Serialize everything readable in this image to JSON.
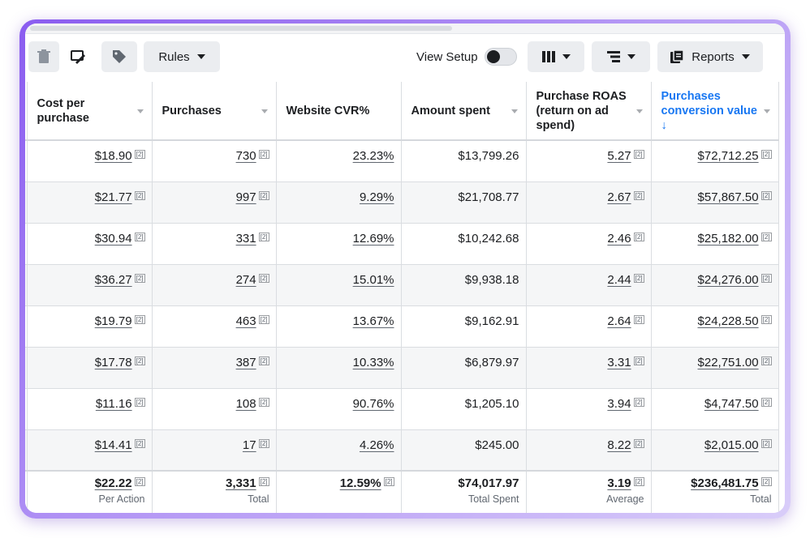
{
  "toolbar": {
    "rules_label": "Rules",
    "view_setup_label": "View Setup",
    "reports_label": "Reports"
  },
  "table": {
    "headers": [
      "Cost per purchase",
      "Purchases",
      "Website CVR%",
      "Amount spent",
      "Purchase ROAS (return on ad spend)",
      "Purchases conversion value ↓"
    ],
    "rows": [
      [
        "$18.90",
        "730",
        "23.23%",
        "$13,799.26",
        "5.27",
        "$72,712.25"
      ],
      [
        "$21.77",
        "997",
        "9.29%",
        "$21,708.77",
        "2.67",
        "$57,867.50"
      ],
      [
        "$30.94",
        "331",
        "12.69%",
        "$10,242.68",
        "2.46",
        "$25,182.00"
      ],
      [
        "$36.27",
        "274",
        "15.01%",
        "$9,938.18",
        "2.44",
        "$24,276.00"
      ],
      [
        "$19.79",
        "463",
        "13.67%",
        "$9,162.91",
        "2.64",
        "$24,228.50"
      ],
      [
        "$17.78",
        "387",
        "10.33%",
        "$6,879.97",
        "3.31",
        "$22,751.00"
      ],
      [
        "$11.16",
        "108",
        "90.76%",
        "$1,205.10",
        "3.94",
        "$4,747.50"
      ],
      [
        "$14.41",
        "17",
        "4.26%",
        "$245.00",
        "8.22",
        "$2,015.00"
      ]
    ],
    "ref_mark": "[2]",
    "totals": [
      {
        "value": "$22.22",
        "label": "Per Action"
      },
      {
        "value": "3,331",
        "label": "Total"
      },
      {
        "value": "12.59%",
        "label": ""
      },
      {
        "value": "$74,017.97",
        "label": "Total Spent"
      },
      {
        "value": "3.19",
        "label": "Average"
      },
      {
        "value": "$236,481.75",
        "label": "Total"
      }
    ]
  },
  "colors": {
    "accent": "#1877f2",
    "frame_gradient_start": "#8a5cf0",
    "row_alt": "#f5f6f7"
  }
}
